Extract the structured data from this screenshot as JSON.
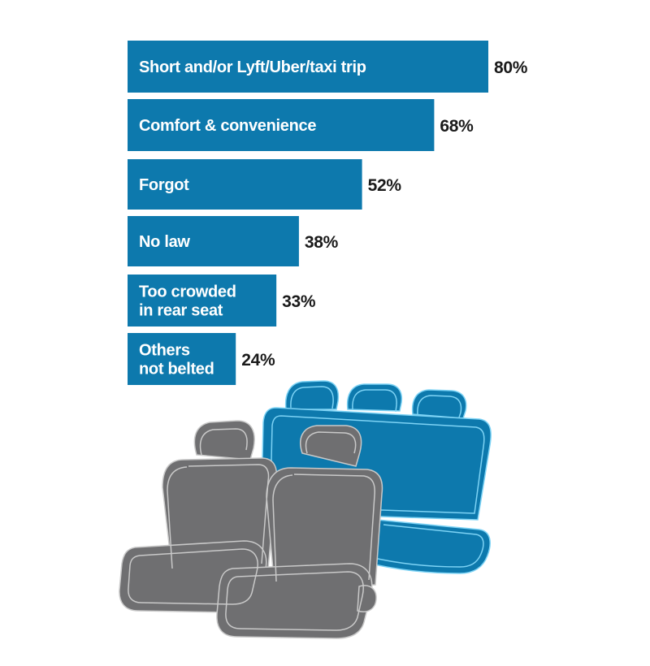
{
  "colors": {
    "bar": "#0d79ad",
    "rear_seat": "#0d79ad",
    "rear_seat_outline": "#7dd3f5",
    "front_seat": "#6f6f71",
    "front_seat_outline": "#c9c9c9"
  },
  "chart_data": {
    "type": "bar",
    "orientation": "horizontal",
    "categories": [
      [
        "Short and/or Lyft/Uber/taxi trip"
      ],
      [
        "Comfort & convenience"
      ],
      [
        "Forgot"
      ],
      [
        "No law"
      ],
      [
        "Too crowded",
        "in rear seat"
      ],
      [
        "Others",
        "not belted"
      ]
    ],
    "values": [
      80,
      68,
      52,
      38,
      33,
      24
    ],
    "value_labels": [
      "80%",
      "68%",
      "52%",
      "38%",
      "33%",
      "24%"
    ],
    "xlim": [
      0,
      100
    ],
    "title": "",
    "xlabel": "",
    "ylabel": "",
    "grid": false,
    "legend": "none"
  },
  "illustration": {
    "subject": "car seats",
    "rear_seat_icon": "rear-bench-seat-icon",
    "front_seat_icon": "front-bucket-seats-icon"
  }
}
